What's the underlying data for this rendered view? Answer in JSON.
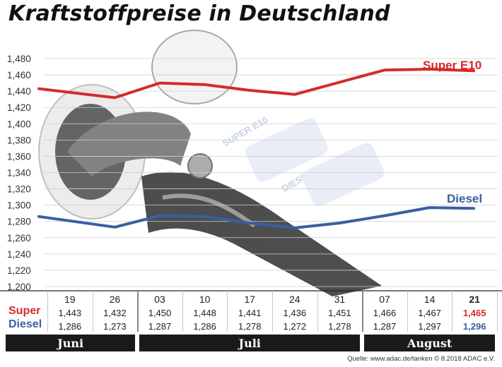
{
  "chart_data": {
    "type": "line",
    "title": "Kraftstoffpreise in Deutschland",
    "categories": [
      "19",
      "26",
      "03",
      "10",
      "17",
      "24",
      "31",
      "07",
      "14",
      "21"
    ],
    "months": [
      {
        "label": "Juni",
        "span": [
          0,
          1
        ]
      },
      {
        "label": "Juli",
        "span": [
          2,
          6
        ]
      },
      {
        "label": "August",
        "span": [
          7,
          9
        ]
      }
    ],
    "ylim": [
      1.2,
      1.49
    ],
    "yticks": [
      "1,200",
      "1,220",
      "1,240",
      "1,260",
      "1,280",
      "1,300",
      "1,320",
      "1,340",
      "1,360",
      "1,380",
      "1,400",
      "1,420",
      "1,440",
      "1,460",
      "1,480"
    ],
    "grid": true,
    "series": [
      {
        "name": "Super E10",
        "row_label": "Super",
        "color": "#d42b2b",
        "values": [
          1.443,
          1.432,
          1.45,
          1.448,
          1.441,
          1.436,
          1.451,
          1.466,
          1.467,
          1.465
        ],
        "labels": [
          "1,443",
          "1,432",
          "1,450",
          "1,448",
          "1,441",
          "1,436",
          "1,451",
          "1,466",
          "1,467",
          "1,465"
        ]
      },
      {
        "name": "Diesel",
        "row_label": "Diesel",
        "color": "#3a5fa0",
        "values": [
          1.286,
          1.273,
          1.287,
          1.286,
          1.278,
          1.272,
          1.278,
          1.287,
          1.297,
          1.296
        ],
        "labels": [
          "1,286",
          "1,273",
          "1,287",
          "1,286",
          "1,278",
          "1,272",
          "1,278",
          "1,287",
          "1,297",
          "1,296"
        ]
      }
    ],
    "source": "Quelle: www.adac.de/tanken   © 8.2018  ADAC e.V."
  },
  "illustration": {
    "display_labels": [
      "SUPER E10",
      "DIESEL"
    ]
  }
}
